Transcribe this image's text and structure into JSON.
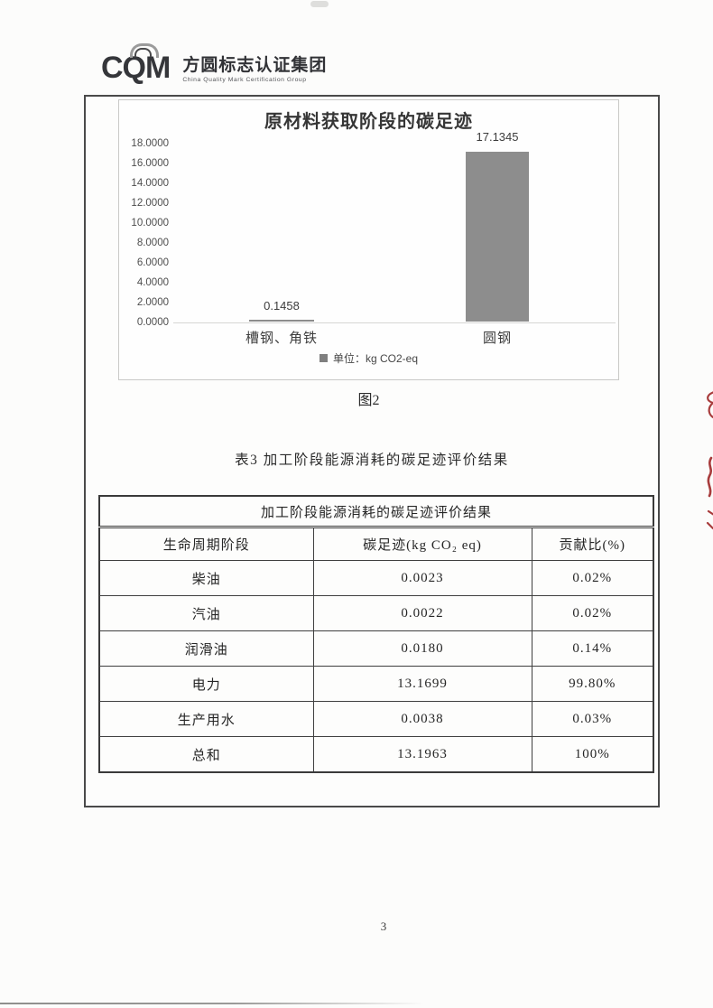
{
  "logo": {
    "acronym": "CQM",
    "name_zh": "方圆标志认证集团",
    "name_en": "China Quality Mark Certification Group"
  },
  "chart_data": {
    "type": "bar",
    "title": "原材料获取阶段的碳足迹",
    "categories": [
      "槽钢、角铁",
      "圆钢"
    ],
    "values": [
      0.1458,
      17.1345
    ],
    "value_labels": [
      "0.1458",
      "17.1345"
    ],
    "legend": "单位：kg CO2-eq",
    "legend_position": "bottom",
    "grid": false,
    "ylim": [
      0,
      18
    ],
    "ytick_step": 2,
    "ytick_labels": [
      "18.0000",
      "16.0000",
      "14.0000",
      "12.0000",
      "10.0000",
      "8.0000",
      "6.0000",
      "4.0000",
      "2.0000",
      "0.0000"
    ],
    "bar_color": "#8d8d8d"
  },
  "figure": {
    "caption": "图2"
  },
  "table": {
    "caption": "表3  加工阶段能源消耗的碳足迹评价结果",
    "merged_header": "加工阶段能源消耗的碳足迹评价结果",
    "columns": [
      "生命周期阶段",
      "碳足迹(kg CO₂ eq)",
      "贡献比(%)"
    ],
    "rows": [
      [
        "柴油",
        "0.0023",
        "0.02%"
      ],
      [
        "汽油",
        "0.0022",
        "0.02%"
      ],
      [
        "润滑油",
        "0.0180",
        "0.14%"
      ],
      [
        "电力",
        "13.1699",
        "99.80%"
      ],
      [
        "生产用水",
        "0.0038",
        "0.03%"
      ],
      [
        "总和",
        "13.1963",
        "100%"
      ]
    ]
  },
  "page": {
    "number": "3"
  },
  "marks": {
    "edge_color": "#a83c3c"
  }
}
